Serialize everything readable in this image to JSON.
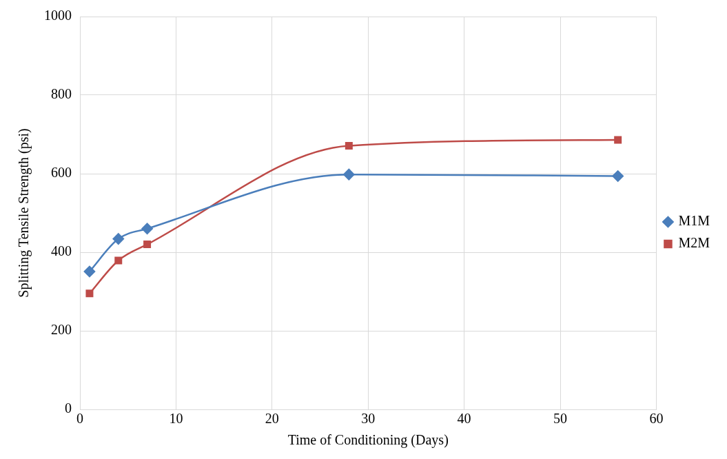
{
  "chart_data": {
    "type": "line",
    "xlabel": "Time of Conditioning (Days)",
    "ylabel": "Splitting Tensile Strength (psi)",
    "xlim": [
      0,
      60
    ],
    "xticks": [
      0,
      10,
      20,
      30,
      40,
      50,
      60
    ],
    "ylim": [
      0,
      1000
    ],
    "yticks": [
      0,
      200,
      400,
      600,
      800,
      1000
    ],
    "grid": true,
    "legend": "right",
    "series": [
      {
        "name": "M1M",
        "color": "#4a7ebb",
        "marker": "diamond",
        "x": [
          1,
          4,
          7,
          28,
          56
        ],
        "values": [
          351,
          434,
          460,
          598,
          594
        ]
      },
      {
        "name": "M2M",
        "color": "#be4b48",
        "marker": "square",
        "x": [
          1,
          4,
          7,
          28,
          56
        ],
        "values": [
          295,
          379,
          420,
          671,
          686
        ]
      }
    ]
  }
}
